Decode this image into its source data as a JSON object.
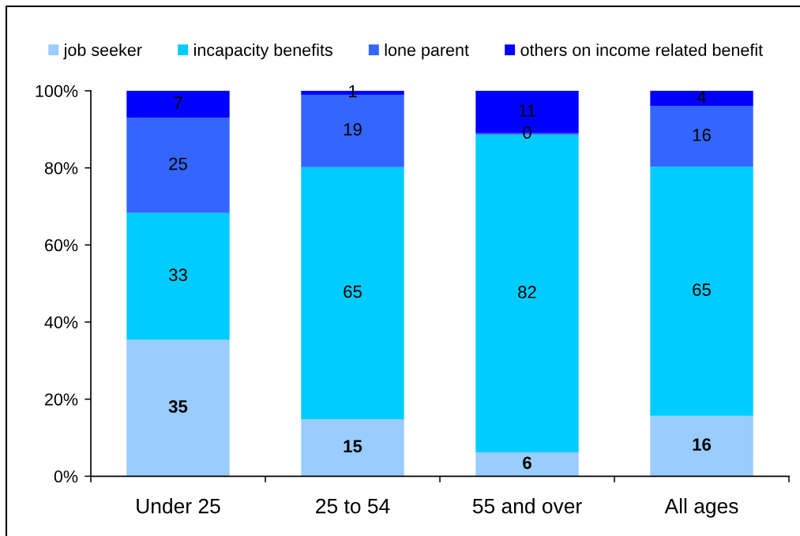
{
  "chart_data": {
    "type": "bar",
    "stacked": true,
    "categories": [
      "Under 25",
      "25 to 54",
      "55 and over",
      "All ages"
    ],
    "series": [
      {
        "name": "job seeker",
        "color": "#99ccff",
        "values": [
          35.4,
          14.8,
          6.2,
          15.7
        ],
        "value_labels": [
          "35",
          "15",
          "6",
          "16"
        ]
      },
      {
        "name": "incapacity benefits",
        "color": "#00ccff",
        "values": [
          32.9,
          65.4,
          82.4,
          64.6
        ],
        "value_labels": [
          "33",
          "65",
          "82",
          "65"
        ]
      },
      {
        "name": "lone parent",
        "color": "#3366ff",
        "values": [
          24.7,
          18.8,
          0.4,
          15.7
        ],
        "value_labels": [
          "25",
          "19",
          "0",
          "16"
        ]
      },
      {
        "name": "others on income related benefit",
        "color": "#0000ff",
        "values": [
          7.0,
          1.0,
          11.0,
          4.0
        ],
        "value_labels": [
          "7",
          "1",
          "11",
          "4"
        ]
      }
    ],
    "ylim": [
      0,
      100
    ],
    "yticks": [
      {
        "value": 0,
        "label": "0%"
      },
      {
        "value": 20,
        "label": "20%"
      },
      {
        "value": 40,
        "label": "40%"
      },
      {
        "value": 60,
        "label": "60%"
      },
      {
        "value": 80,
        "label": "80%"
      },
      {
        "value": 100,
        "label": "100%"
      }
    ],
    "legend": "top",
    "grid": false
  }
}
